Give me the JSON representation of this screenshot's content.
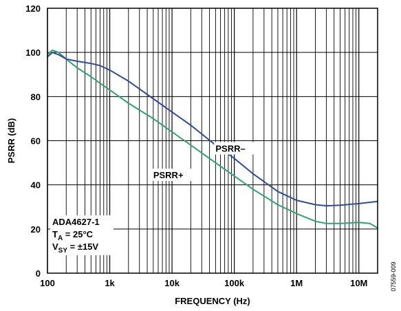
{
  "chart_data": {
    "type": "line",
    "xlabel": "FREQUENCY (Hz)",
    "ylabel": "PSRR (dB)",
    "x_scale": "log",
    "xlim": [
      100,
      20000000
    ],
    "ylim": [
      0,
      120
    ],
    "grid": true,
    "x_ticks": [
      {
        "value": 100,
        "label": "100"
      },
      {
        "value": 1000,
        "label": "1k"
      },
      {
        "value": 10000,
        "label": "10k"
      },
      {
        "value": 100000,
        "label": "100k"
      },
      {
        "value": 1000000,
        "label": "1M"
      },
      {
        "value": 10000000,
        "label": "10M"
      }
    ],
    "y_ticks": [
      {
        "value": 0,
        "label": "0"
      },
      {
        "value": 20,
        "label": "20"
      },
      {
        "value": 40,
        "label": "40"
      },
      {
        "value": 60,
        "label": "60"
      },
      {
        "value": 80,
        "label": "80"
      },
      {
        "value": 100,
        "label": "100"
      },
      {
        "value": 120,
        "label": "120"
      }
    ],
    "series": [
      {
        "name": "PSRR–",
        "color": "#2e4a9a",
        "x": [
          100,
          120,
          150,
          200,
          300,
          500,
          700,
          1000,
          2000,
          5000,
          10000,
          20000,
          50000,
          100000,
          200000,
          500000,
          1000000,
          2000000,
          3000000,
          5000000,
          10000000,
          20000000
        ],
        "y": [
          98,
          100,
          99,
          97,
          96,
          95,
          94,
          92,
          87,
          79,
          73,
          67,
          58,
          52,
          45,
          37,
          33,
          31,
          30.5,
          30.8,
          31.5,
          32.5
        ]
      },
      {
        "name": "PSRR+",
        "color": "#2ea36b",
        "x": [
          100,
          120,
          150,
          200,
          300,
          500,
          700,
          1000,
          2000,
          5000,
          10000,
          20000,
          50000,
          100000,
          200000,
          500000,
          1000000,
          2000000,
          3000000,
          5000000,
          10000000,
          15000000,
          20000000
        ],
        "y": [
          99,
          101,
          100,
          97,
          93,
          89,
          86,
          83,
          77,
          70,
          64,
          58,
          50,
          44,
          38,
          31,
          27,
          23.5,
          22.5,
          22.5,
          23,
          22.5,
          20.5
        ]
      }
    ],
    "series_labels": [
      {
        "text": "PSRR–",
        "x": 50000,
        "y": 55
      },
      {
        "text": "PSRR+",
        "x": 5000,
        "y": 43
      }
    ],
    "annotation": {
      "line1": "ADA4627-1",
      "line2_main": "T",
      "line2_sub": "A",
      "line2_rest": " = 25°C",
      "line3_main": "V",
      "line3_sub": "SY",
      "line3_rest": " = ±15V"
    },
    "figure_id": "07559-009"
  }
}
